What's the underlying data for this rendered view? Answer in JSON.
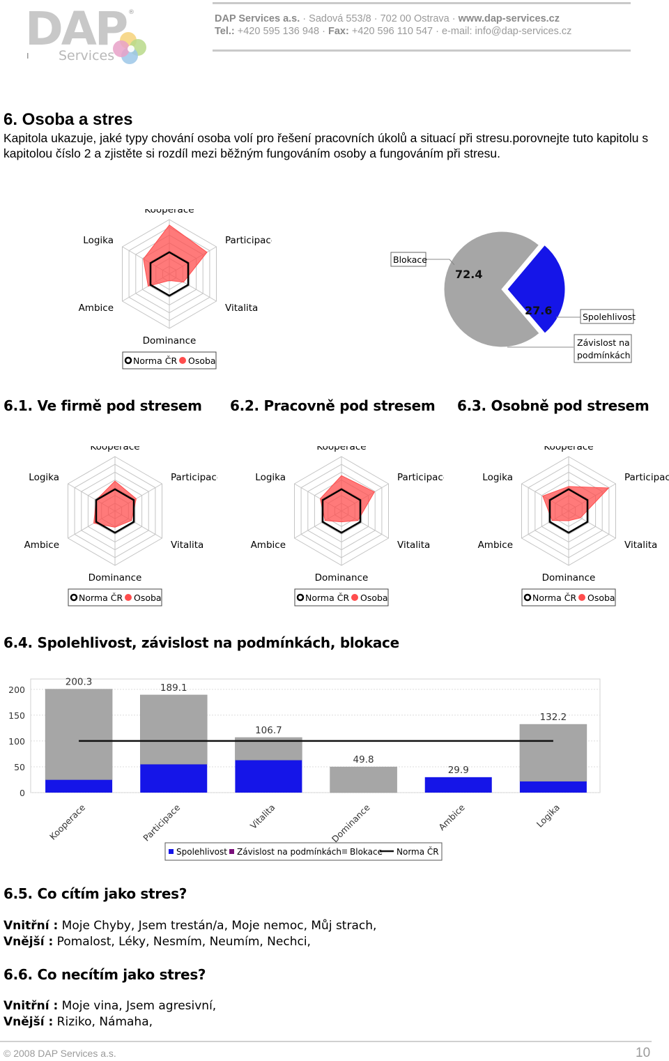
{
  "header": {
    "logo_main": "DAP",
    "logo_registered": "®",
    "logo_sub": "Services",
    "company": "DAP Services a.s.",
    "street": "Sadová 553/8",
    "city": "702 00 Ostrava",
    "web": "www.dap-services.cz",
    "tel_label": "Tel.:",
    "tel": "+420 595 136 948",
    "fax_label": "Fax:",
    "fax": "+420 596 110 547",
    "email": "e-mail: info@dap-services.cz",
    "separator": "·"
  },
  "chapter": {
    "title": "6. Osoba a stres",
    "intro": "Kapitola ukazuje, jaké typy chování osoba volí pro řešení pracovních úkolů a situací při stresu.porovnejte tuto kapitolu s kapitolou číslo 2 a zjistěte si rozdíl mezi běžným fungováním osoby a fungováním při stresu."
  },
  "radar_axes": [
    "Kooperace",
    "Participace",
    "Vitalita",
    "Dominance",
    "Ambice",
    "Logika"
  ],
  "legend_radar": {
    "norma": "Norma ČR",
    "osoba": "Osoba"
  },
  "colors": {
    "osoba": "#ff4d4d",
    "norma": "#000000",
    "spolehlivost": "#1515e8",
    "zavislost": "#7a0f7a",
    "blokace": "#a6a6a6"
  },
  "chart_data": [
    {
      "type": "radar",
      "title": "",
      "axes": [
        "Kooperace",
        "Participace",
        "Vitalita",
        "Dominance",
        "Ambice",
        "Logika"
      ],
      "series": [
        {
          "name": "Norma ČR",
          "values": [
            0.4,
            0.4,
            0.4,
            0.4,
            0.4,
            0.4
          ]
        },
        {
          "name": "Osoba",
          "values": [
            0.9,
            0.8,
            0.3,
            0.12,
            0.45,
            0.55
          ]
        }
      ]
    },
    {
      "type": "pie",
      "slices": [
        {
          "label": "Blokace",
          "value": 72.4
        },
        {
          "label": "Spolehlivost",
          "value": 27.6
        },
        {
          "label": "Závislost na podmínkách",
          "value": 0
        }
      ]
    },
    {
      "type": "radar",
      "title": "6.1. Ve firmě pod stresem",
      "axes": [
        "Kooperace",
        "Participace",
        "Vitalita",
        "Dominance",
        "Ambice",
        "Logika"
      ],
      "series": [
        {
          "name": "Norma ČR",
          "values": [
            0.4,
            0.4,
            0.4,
            0.4,
            0.4,
            0.4
          ]
        },
        {
          "name": "Osoba",
          "values": [
            0.55,
            0.45,
            0.35,
            0.3,
            0.45,
            0.4
          ]
        }
      ]
    },
    {
      "type": "radar",
      "title": "6.2. Pracovně pod stresem",
      "axes": [
        "Kooperace",
        "Participace",
        "Vitalita",
        "Dominance",
        "Ambice",
        "Logika"
      ],
      "series": [
        {
          "name": "Norma ČR",
          "values": [
            0.4,
            0.4,
            0.4,
            0.4,
            0.4,
            0.4
          ]
        },
        {
          "name": "Osoba",
          "values": [
            0.65,
            0.7,
            0.35,
            0.2,
            0.35,
            0.45
          ]
        }
      ]
    },
    {
      "type": "radar",
      "title": "6.3. Osobně pod stresem",
      "axes": [
        "Kooperace",
        "Participace",
        "Vitalita",
        "Dominance",
        "Ambice",
        "Logika"
      ],
      "series": [
        {
          "name": "Norma ČR",
          "values": [
            0.4,
            0.4,
            0.4,
            0.4,
            0.4,
            0.4
          ]
        },
        {
          "name": "Osoba",
          "values": [
            0.45,
            0.85,
            0.25,
            0.18,
            0.35,
            0.55
          ]
        }
      ]
    },
    {
      "type": "bar",
      "title": "6.4. Spolehlivost, závislost na podmínkách, blokace",
      "stacked": true,
      "categories": [
        "Kooperace",
        "Participace",
        "Vitalita",
        "Dominance",
        "Ambice",
        "Logika"
      ],
      "totals": [
        200.3,
        189.1,
        106.7,
        49.8,
        29.9,
        132.2
      ],
      "series": [
        {
          "name": "Spolehlivost",
          "values": [
            25,
            55,
            63,
            0,
            29.9,
            22
          ]
        },
        {
          "name": "Závislost na podmínkách",
          "values": [
            0,
            0,
            0,
            0,
            0,
            0
          ]
        },
        {
          "name": "Blokace",
          "values": [
            175.3,
            134.1,
            43.7,
            49.8,
            0,
            110.2
          ]
        }
      ],
      "line": {
        "name": "Norma ČR",
        "value": 100
      },
      "ylim": [
        0,
        220
      ],
      "yticks": [
        0,
        50,
        100,
        150,
        200
      ],
      "grid": true,
      "legend": "bottom"
    }
  ],
  "sections": {
    "s61": "6.1. Ve firmě pod stresem",
    "s62": "6.2. Pracovně pod stresem",
    "s63": "6.3. Osobně pod stresem",
    "s64": "6.4. Spolehlivost, závislost na podmínkách, blokace",
    "s65": "6.5. Co cítím jako stres?",
    "s66": "6.6. Co necítím jako stres?"
  },
  "q65": {
    "inner_label": "Vnitřní :",
    "inner_text": " Moje Chyby, Jsem trestán/a, Moje nemoc, Můj strach,",
    "outer_label": "Vnější :",
    "outer_text": " Pomalost, Léky, Nesmím, Neumím, Nechci,"
  },
  "q66": {
    "inner_label": "Vnitřní :",
    "inner_text": " Moje vina, Jsem agresivní,",
    "outer_label": "Vnější :",
    "outer_text": " Riziko, Námaha,"
  },
  "footer": {
    "copyright": "© 2008 DAP Services a.s.",
    "page": "10"
  }
}
